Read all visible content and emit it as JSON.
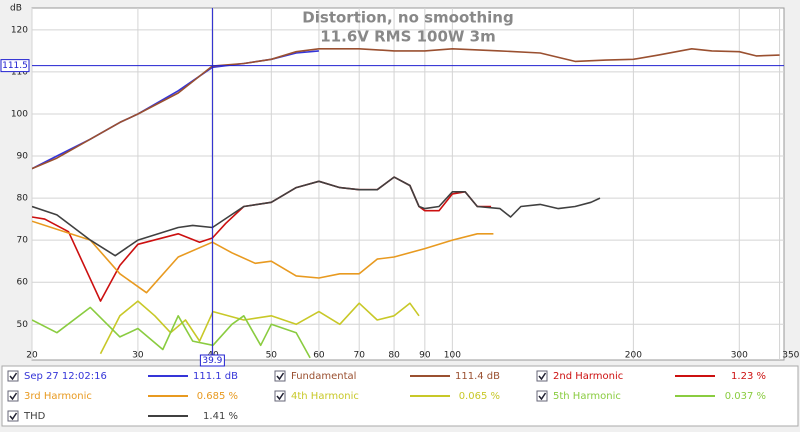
{
  "chart_data": {
    "type": "line",
    "title": "Distortion, no smoothing",
    "subtitle": "11.6V RMS 100W 3m",
    "y_label": "dB",
    "log_x": true,
    "grid": true,
    "xlim": [
      20,
      356
    ],
    "ylim": [
      41.5,
      125.2
    ],
    "xticks": [
      20,
      30,
      40,
      50,
      60,
      70,
      80,
      90,
      100,
      200,
      300,
      {
        "value": 350,
        "label": "350 Hz"
      }
    ],
    "yticks": [
      50,
      60,
      70,
      80,
      90,
      100,
      110,
      120
    ],
    "cursor": {
      "x": 39.9,
      "y": 111.5,
      "color": "#2020d0"
    },
    "series": [
      {
        "name": "Sep 27 12:02:16",
        "color": "#3535d8",
        "legend_value": "111.1 dB",
        "x": [
          20,
          22,
          25,
          28,
          30,
          35,
          39.9,
          45,
          50,
          55,
          60
        ],
        "values": [
          87,
          90,
          94,
          98,
          100,
          105.5,
          111.1,
          112,
          113,
          114.5,
          115
        ]
      },
      {
        "name": "Fundamental",
        "color": "#9a5030",
        "legend_value": "111.4 dB",
        "x": [
          20,
          22,
          25,
          28,
          30,
          35,
          39.9,
          45,
          50,
          55,
          60,
          70,
          80,
          90,
          100,
          120,
          140,
          160,
          180,
          200,
          220,
          250,
          270,
          300,
          320,
          350
        ],
        "values": [
          87,
          89.5,
          94,
          98,
          100,
          105,
          111.4,
          112,
          113,
          114.8,
          115.5,
          115.5,
          115,
          115,
          115.5,
          115,
          114.5,
          112.5,
          112.8,
          113,
          114,
          115.5,
          115,
          114.8,
          113.8,
          114
        ]
      },
      {
        "name": "2nd Harmonic",
        "color": "#cc1010",
        "legend_value": "1.23 %",
        "x": [
          20,
          21,
          23,
          26,
          28,
          30,
          35,
          38,
          39.9,
          42,
          45,
          50,
          55,
          60,
          65,
          70,
          75,
          80,
          85,
          88,
          90,
          95,
          100,
          105,
          110,
          116
        ],
        "values": [
          75.5,
          75,
          72,
          55.5,
          64,
          69,
          71.5,
          69.5,
          70.5,
          74,
          78,
          79,
          82.5,
          84,
          82.5,
          82,
          82,
          85,
          83,
          78,
          77,
          77,
          81,
          81.5,
          78,
          78
        ]
      },
      {
        "name": "3rd Harmonic",
        "color": "#e89a20",
        "legend_value": "0.685 %",
        "x": [
          20,
          25,
          28,
          31,
          35,
          39.9,
          43,
          47,
          50,
          55,
          60,
          65,
          70,
          75,
          80,
          90,
          100,
          110,
          117
        ],
        "values": [
          74.5,
          70,
          62,
          57.5,
          66,
          69.5,
          67,
          64.5,
          65,
          61.5,
          61,
          62,
          62,
          65.5,
          66,
          68,
          70,
          71.5,
          71.5
        ]
      },
      {
        "name": "4th Harmonic",
        "color": "#c8c828",
        "legend_value": "0.065 %",
        "x": [
          26,
          28,
          30,
          32,
          34,
          36,
          38,
          40,
          45,
          50,
          55,
          60,
          65,
          70,
          75,
          80,
          85,
          88
        ],
        "values": [
          43,
          52,
          55.5,
          52,
          48,
          51,
          46,
          53,
          51,
          52,
          50,
          53,
          50,
          55,
          51,
          52,
          55,
          52
        ]
      },
      {
        "name": "5th Harmonic",
        "color": "#8acc40",
        "legend_value": "0.037 %",
        "x": [
          20,
          22,
          25,
          28,
          30,
          33,
          35,
          37,
          40,
          43,
          45,
          48,
          50,
          55,
          58
        ],
        "values": [
          51,
          48,
          54,
          47,
          49,
          44,
          52,
          46,
          45,
          50,
          52,
          45,
          50,
          48,
          42
        ]
      },
      {
        "name": "THD",
        "color": "#404040",
        "legend_value": "1.41 %",
        "x": [
          20,
          22,
          25,
          27.5,
          30,
          35,
          37,
          39.9,
          45,
          50,
          55,
          60,
          65,
          70,
          75,
          80,
          85,
          88,
          90,
          95,
          100,
          105,
          110,
          120,
          125,
          130,
          140,
          150,
          160,
          170,
          176
        ],
        "values": [
          78,
          76,
          70,
          66.3,
          70,
          73,
          73.5,
          73,
          78,
          79,
          82.5,
          84,
          82.5,
          82,
          82,
          85,
          83,
          78,
          77.5,
          78,
          81.5,
          81.5,
          78,
          77.5,
          75.5,
          78,
          78.5,
          77.5,
          78,
          79,
          80
        ]
      }
    ]
  }
}
